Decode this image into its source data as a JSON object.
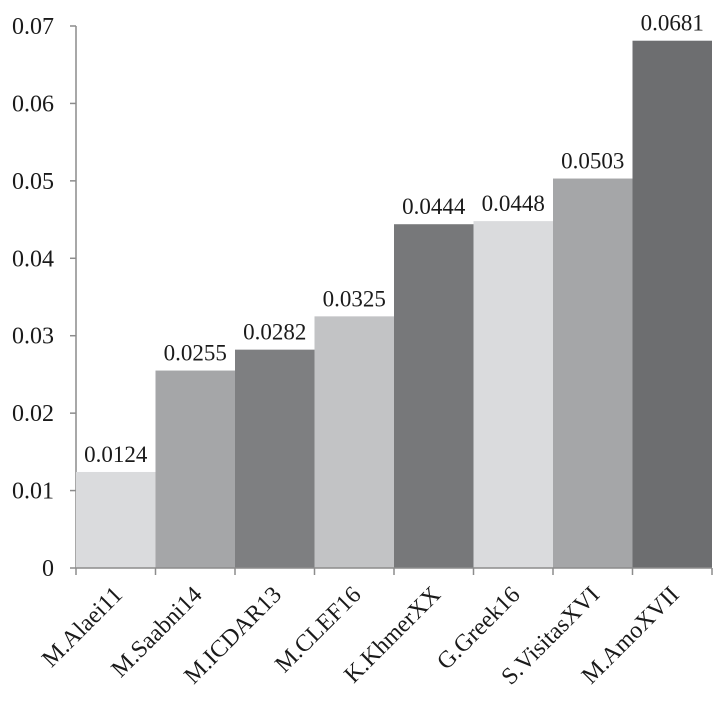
{
  "chart_data": {
    "type": "bar",
    "categories": [
      "M.Alaei11",
      "M.Saabni14",
      "M.ICDAR13",
      "M.CLEF16",
      "K.KhmerXX",
      "G.Greek16",
      "S.VisitasXVI",
      "M.AmoXVII"
    ],
    "values": [
      0.0124,
      0.0255,
      0.0282,
      0.0325,
      0.0444,
      0.0448,
      0.0503,
      0.0681
    ],
    "value_labels": [
      "0.0124",
      "0.0255",
      "0.0282",
      "0.0325",
      "0.0444",
      "0.0448",
      "0.0503",
      "0.0681"
    ],
    "bar_colors": [
      "#dadbdd",
      "#a5a6a8",
      "#7e7f81",
      "#c2c3c5",
      "#77787a",
      "#dadbdd",
      "#a5a6a8",
      "#6d6e70"
    ],
    "ylim": [
      0,
      0.07
    ],
    "y_ticks": [
      0,
      0.01,
      0.02,
      0.03,
      0.04,
      0.05,
      0.06,
      0.07
    ],
    "y_tick_labels": [
      "0",
      "0.01",
      "0.02",
      "0.03",
      "0.04",
      "0.05",
      "0.06",
      "0.07"
    ],
    "title": "",
    "xlabel": "",
    "ylabel": "",
    "grid": false,
    "legend": "none"
  }
}
